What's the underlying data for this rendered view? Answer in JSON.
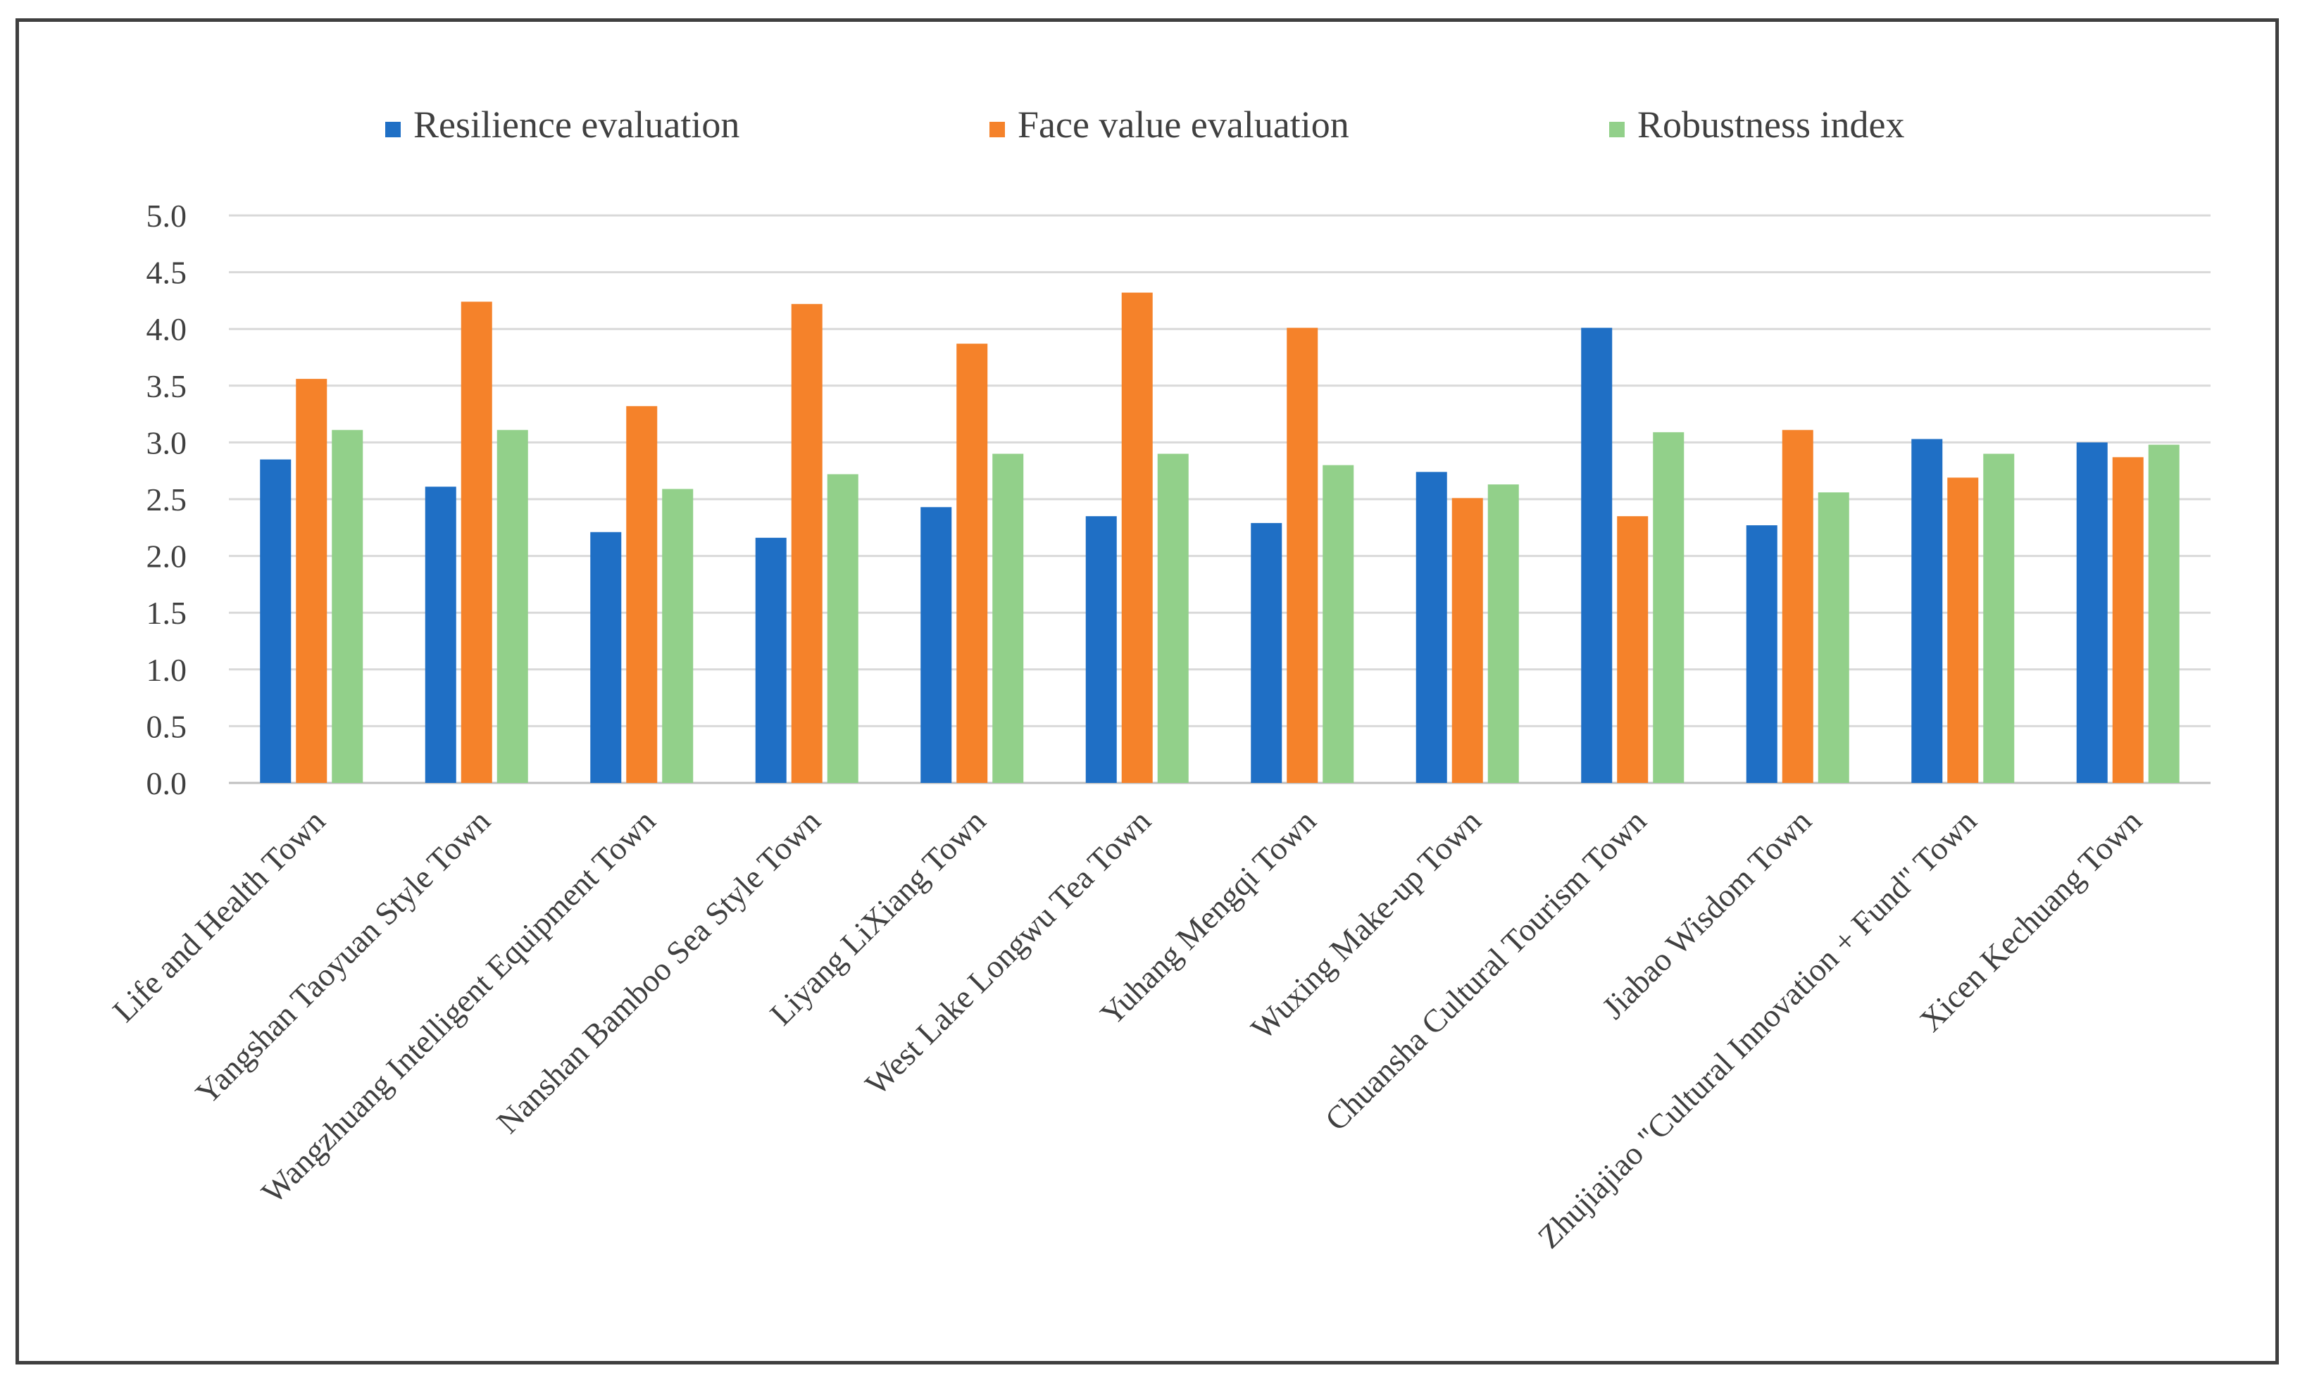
{
  "chart_data": {
    "type": "bar",
    "title": "",
    "xlabel": "",
    "ylabel": "",
    "ylim": [
      0,
      5.0
    ],
    "yticks": [
      "0.0",
      "0.5",
      "1.0",
      "1.5",
      "2.0",
      "2.5",
      "3.0",
      "3.5",
      "4.0",
      "4.5",
      "5.0"
    ],
    "grid": true,
    "legend_position": "top",
    "categories": [
      "Life and Health Town",
      "Yangshan Taoyuan Style Town",
      "Wangzhuang Intelligent  Equipment Town",
      "Nanshan Bamboo Sea Style Town",
      "Liyang LiXiang Town",
      "West Lake Longwu Tea Town",
      "Yuhang Mengqi Town",
      "Wuxing Make-up Town",
      "Chuansha Cultural Tourism Town",
      "Jiabao Wisdom Town",
      "Zhujiajiao \"Cultural Innovation + Fund\" Town",
      "Xicen Kechuang Town"
    ],
    "series": [
      {
        "name": "Resilience evaluation",
        "color": "#1f6fc5",
        "values": [
          2.85,
          2.61,
          2.21,
          2.16,
          2.43,
          2.35,
          2.29,
          2.74,
          4.01,
          2.27,
          3.03,
          3.0
        ]
      },
      {
        "name": "Face value  evaluation",
        "color": "#f5822a",
        "values": [
          3.56,
          4.24,
          3.32,
          4.22,
          3.87,
          4.32,
          4.01,
          2.51,
          2.35,
          3.11,
          2.69,
          2.87
        ]
      },
      {
        "name": "Robustness index",
        "color": "#92d08a",
        "values": [
          3.11,
          3.11,
          2.59,
          2.72,
          2.9,
          2.9,
          2.8,
          2.63,
          3.09,
          2.56,
          2.9,
          2.98
        ]
      }
    ]
  }
}
